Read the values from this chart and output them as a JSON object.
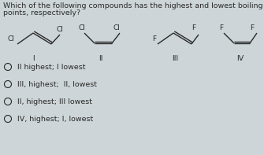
{
  "title_line1": "Which of the following compounds has the highest and lowest boiling",
  "title_line2": "points, respectively?",
  "bg_color": "#cdd5d8",
  "text_color": "#2a2a2a",
  "title_fontsize": 6.8,
  "answer_fontsize": 6.8,
  "label_fontsize": 6.8,
  "answers": [
    "II highest; I lowest",
    "III, highest;  II, lowest",
    "II, highest; III lowest",
    "IV, highest; I, lowest"
  ]
}
